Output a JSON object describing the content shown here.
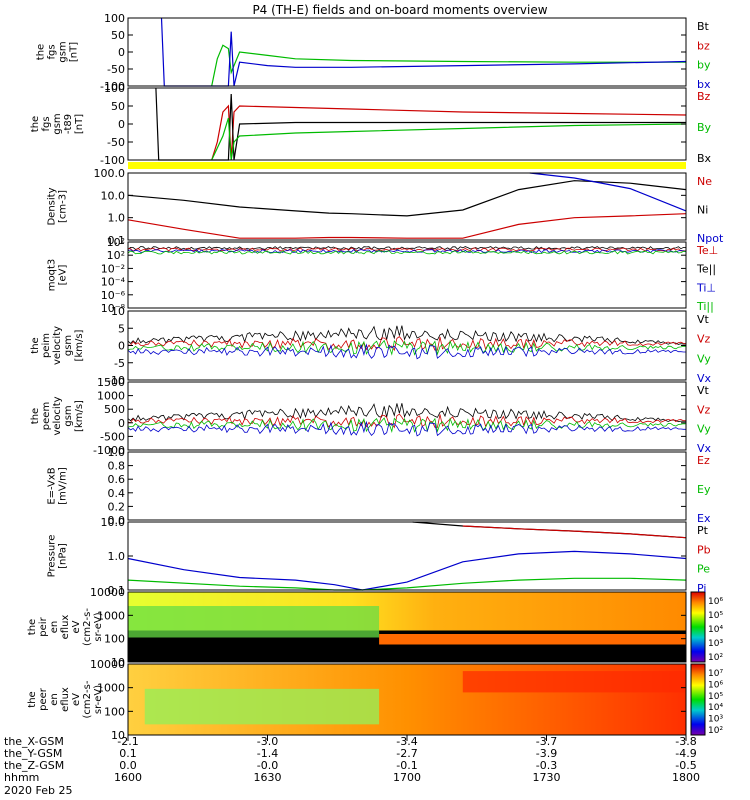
{
  "chart_data": {
    "type": "line",
    "title": "P4 (TH-E) fields and on-board moments overview",
    "time": {
      "x_ticks": [
        "1600",
        "1630",
        "1700",
        "1730",
        "1800"
      ],
      "hhmm_label": "hhmm",
      "date_label": "2020 Feb 25"
    },
    "orbit_rows": [
      {
        "label": "the_X-GSM",
        "values": [
          "-2.1",
          "-3.0",
          "-3.4",
          "-3.7",
          "-3.8"
        ]
      },
      {
        "label": "the_Y-GSM",
        "values": [
          "0.1",
          "-1.4",
          "-2.7",
          "-3.9",
          "-4.9"
        ]
      },
      {
        "label": "the_Z-GSM",
        "values": [
          "0.0",
          "-0.0",
          "-0.1",
          "-0.3",
          "-0.5"
        ]
      }
    ],
    "panels": [
      {
        "id": "fgs-gsm",
        "ylabel": [
          "the",
          "fgs",
          "gsm",
          "[nT]"
        ],
        "scale": "linear",
        "ylim": [
          -100,
          100
        ],
        "ticks": [
          "100",
          "50",
          "0",
          "-50",
          "-100"
        ],
        "legend": [
          {
            "label": "Bt",
            "color": "#000000"
          },
          {
            "label": "bz",
            "color": "#cc0000"
          },
          {
            "label": "by",
            "color": "#00bb00"
          },
          {
            "label": "bx",
            "color": "#0000cc"
          }
        ]
      },
      {
        "id": "fgs-gsm-t89",
        "ylabel": [
          "the",
          "fgs",
          "gsm",
          "-t89",
          "[nT]"
        ],
        "scale": "linear",
        "ylim": [
          -120,
          120
        ],
        "ticks": [
          "100",
          "50",
          "0",
          "-50",
          "-100"
        ],
        "legend": [
          {
            "label": "Bz",
            "color": "#cc0000"
          },
          {
            "label": "By",
            "color": "#00bb00"
          },
          {
            "label": "Bx",
            "color": "#000000"
          }
        ]
      },
      {
        "id": "density",
        "ylabel": [
          "Density",
          "[cm-3]"
        ],
        "scale": "log",
        "ylim": [
          0.1,
          100
        ],
        "ticks": [
          "100.0",
          "10.0",
          "1.0",
          "0.1"
        ],
        "legend": [
          {
            "label": "Ne",
            "color": "#cc0000"
          },
          {
            "label": "Ni",
            "color": "#000000"
          },
          {
            "label": "Npot",
            "color": "#0000cc"
          }
        ]
      },
      {
        "id": "temperature",
        "ylabel": [
          "moqt3",
          "[eV]"
        ],
        "scale": "log",
        "ticks": [
          "10²",
          "10²",
          "10⁻²",
          "10⁻⁴",
          "10⁻⁶",
          "10⁻⁸"
        ],
        "legend": [
          {
            "label": "Te⊥",
            "color": "#cc0000"
          },
          {
            "label": "Te||",
            "color": "#000000"
          },
          {
            "label": "Ti⊥",
            "color": "#0000cc"
          },
          {
            "label": "Ti||",
            "color": "#00bb00"
          }
        ]
      },
      {
        "id": "peim-velocity",
        "ylabel": [
          "the",
          "peim",
          "velocity",
          "gsm",
          "[km/s]"
        ],
        "scale": "linear",
        "ylim": [
          -10,
          10
        ],
        "ticks": [
          "10",
          "5",
          "0",
          "-5",
          "-10"
        ],
        "legend": [
          {
            "label": "Vt",
            "color": "#000000"
          },
          {
            "label": "Vz",
            "color": "#cc0000"
          },
          {
            "label": "Vy",
            "color": "#00bb00"
          },
          {
            "label": "Vx",
            "color": "#0000cc"
          }
        ]
      },
      {
        "id": "peem-velocity",
        "ylabel": [
          "the",
          "peem",
          "velocity",
          "gsm",
          "[km/s]"
        ],
        "scale": "linear",
        "ylim": [
          -1000,
          1500
        ],
        "ticks": [
          "1500",
          "1000",
          "500",
          "0",
          "-500",
          "-1000"
        ],
        "legend": [
          {
            "label": "Vt",
            "color": "#000000"
          },
          {
            "label": "Vz",
            "color": "#cc0000"
          },
          {
            "label": "Vy",
            "color": "#00bb00"
          },
          {
            "label": "Vx",
            "color": "#0000cc"
          }
        ]
      },
      {
        "id": "efield",
        "ylabel": [
          "E=-VxB",
          "[mV/m]"
        ],
        "scale": "linear",
        "ylim": [
          0,
          1
        ],
        "ticks": [
          "1.0",
          "0.8",
          "0.6",
          "0.4",
          "0.2",
          "0.0"
        ],
        "legend": [
          {
            "label": "Ez",
            "color": "#cc0000"
          },
          {
            "label": "Ey",
            "color": "#00bb00"
          },
          {
            "label": "Ex",
            "color": "#0000cc"
          }
        ]
      },
      {
        "id": "pressure",
        "ylabel": [
          "Pressure",
          "[nPa]"
        ],
        "scale": "log",
        "ylim": [
          0.05,
          20
        ],
        "ticks": [
          "10.0",
          "1.0",
          "0.1"
        ],
        "legend": [
          {
            "label": "Pt",
            "color": "#000000"
          },
          {
            "label": "Pb",
            "color": "#cc0000"
          },
          {
            "label": "Pe",
            "color": "#00bb00"
          },
          {
            "label": "Pi",
            "color": "#0000cc"
          }
        ]
      },
      {
        "id": "peir-spectrogram",
        "ylabel": [
          "the",
          "peir",
          "en",
          "eflux",
          "eV",
          "(cm2-s-",
          "sr-eV)"
        ],
        "scale": "log",
        "ticks": [
          "10000",
          "1000",
          "100",
          "10"
        ],
        "colorbar_ticks": [
          "10⁶",
          "10⁵",
          "10⁴",
          "10³",
          "10²"
        ]
      },
      {
        "id": "peer-spectrogram",
        "ylabel": [
          "the",
          "peer",
          "en",
          "eflux",
          "eV",
          "(cm2-s-",
          "sr-eV)"
        ],
        "scale": "log",
        "ticks": [
          "10000",
          "1000",
          "100",
          "10"
        ],
        "colorbar_ticks": [
          "10⁷",
          "10⁶",
          "10⁵",
          "10⁴",
          "10³",
          "10²"
        ]
      }
    ],
    "series": [
      {
        "panel": "density",
        "name": "Ni",
        "color": "#000000",
        "x": [
          0,
          0.1,
          0.2,
          0.3,
          0.36,
          0.4,
          0.5,
          0.6,
          0.7,
          0.8,
          0.9,
          1.0
        ],
        "values": [
          10,
          6,
          3,
          2,
          1.6,
          1.5,
          1.2,
          2.2,
          18,
          45,
          35,
          18
        ]
      },
      {
        "panel": "density",
        "name": "Ne",
        "color": "#cc0000",
        "x": [
          0,
          0.1,
          0.2,
          0.3,
          0.36,
          0.4,
          0.5,
          0.6,
          0.7,
          0.8,
          0.9,
          1.0
        ],
        "values": [
          0.8,
          0.3,
          0.12,
          0.12,
          0.13,
          0.13,
          0.12,
          0.12,
          0.5,
          1.0,
          1.2,
          1.5
        ]
      },
      {
        "panel": "density",
        "name": "Npot",
        "color": "#0000cc",
        "x": [
          0.72,
          0.8,
          0.9,
          1.0
        ],
        "values": [
          100,
          60,
          20,
          2
        ]
      },
      {
        "panel": "pressure",
        "name": "Pi",
        "color": "#0000cc",
        "x": [
          0,
          0.1,
          0.2,
          0.3,
          0.37,
          0.42,
          0.5,
          0.6,
          0.7,
          0.8,
          0.9,
          1.0
        ],
        "values": [
          0.8,
          0.3,
          0.15,
          0.12,
          0.08,
          0.05,
          0.1,
          0.6,
          1.2,
          1.5,
          1.2,
          0.8
        ]
      },
      {
        "panel": "pressure",
        "name": "Pe",
        "color": "#00bb00",
        "x": [
          0,
          0.2,
          0.3,
          0.37,
          0.42,
          0.5,
          0.6,
          0.7,
          0.8,
          0.9,
          1.0
        ],
        "values": [
          0.12,
          0.07,
          0.06,
          0.05,
          0.05,
          0.06,
          0.09,
          0.12,
          0.14,
          0.14,
          0.12
        ]
      },
      {
        "panel": "pressure",
        "name": "Pt",
        "color": "#000000",
        "x": [
          0.51,
          0.6,
          0.7,
          0.8,
          0.9,
          1.0
        ],
        "values": [
          20,
          14,
          11,
          9,
          7,
          5
        ]
      },
      {
        "panel": "pressure",
        "name": "Pb",
        "color": "#cc0000",
        "x": [
          0.6,
          0.7,
          0.8,
          0.9,
          1.0
        ],
        "values": [
          14,
          11,
          9,
          7,
          5
        ]
      },
      {
        "panel": "fgs-gsm",
        "name": "by",
        "color": "#00bb00",
        "x": [
          0.15,
          0.16,
          0.17,
          0.18,
          0.185,
          0.2,
          0.25,
          0.3,
          0.4,
          0.6,
          0.8,
          1.0
        ],
        "values": [
          -100,
          -20,
          20,
          10,
          -60,
          0,
          -10,
          -20,
          -25,
          -28,
          -30,
          -30
        ]
      },
      {
        "panel": "fgs-gsm",
        "name": "bx",
        "color": "#0000cc",
        "x": [
          0.06,
          0.065,
          0.18,
          0.185,
          0.19,
          0.2,
          0.25,
          0.3,
          0.4,
          0.6,
          0.8,
          1.0
        ],
        "values": [
          100,
          -100,
          -100,
          60,
          -100,
          -30,
          -40,
          -45,
          -45,
          -40,
          -35,
          -28
        ]
      },
      {
        "panel": "fgs-gsm-t89",
        "name": "Bz",
        "color": "#cc0000",
        "x": [
          0.15,
          0.16,
          0.17,
          0.18,
          0.185,
          0.19,
          0.2,
          0.3,
          0.4,
          0.6,
          0.8,
          1.0
        ],
        "values": [
          -120,
          -60,
          40,
          60,
          -120,
          40,
          60,
          55,
          50,
          40,
          35,
          30
        ]
      },
      {
        "panel": "fgs-gsm-t89",
        "name": "Bx",
        "color": "#000000",
        "x": [
          0.05,
          0.055,
          0.18,
          0.185,
          0.19,
          0.2,
          0.3,
          0.5,
          0.8,
          1.0
        ],
        "values": [
          120,
          -120,
          -120,
          100,
          -120,
          0,
          5,
          5,
          5,
          5
        ]
      },
      {
        "panel": "fgs-gsm-t89",
        "name": "By",
        "color": "#00bb00",
        "x": [
          0.15,
          0.17,
          0.18,
          0.185,
          0.19,
          0.2,
          0.3,
          0.4,
          0.6,
          0.8,
          1.0
        ],
        "values": [
          -120,
          -40,
          20,
          -120,
          -60,
          -40,
          -30,
          -25,
          -15,
          -5,
          0
        ]
      }
    ]
  }
}
